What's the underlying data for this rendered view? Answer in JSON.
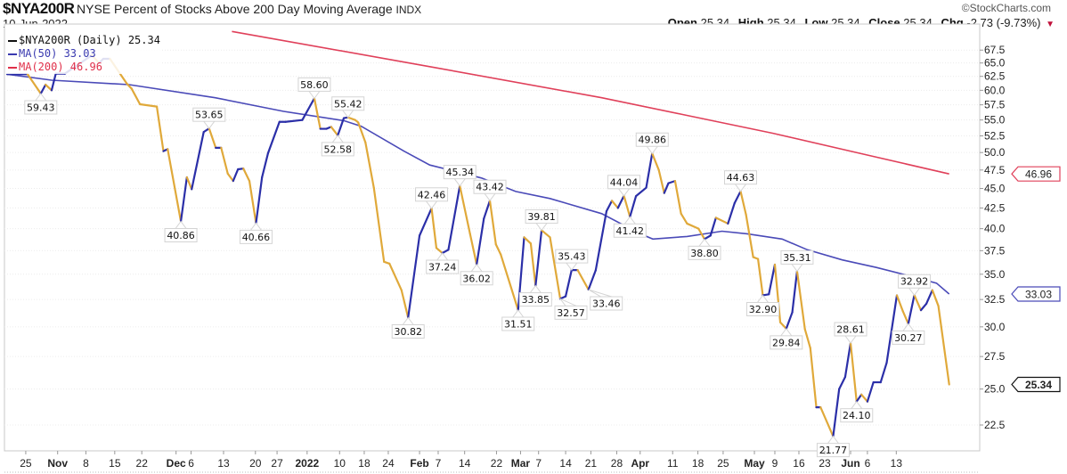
{
  "header": {
    "symbol": "$NYA200R",
    "description": "NYSE Percent of Stocks Above 200 Day Moving Average",
    "exchange": "INDX",
    "date": "10-Jun-2022",
    "copyright": "©StockCharts.com",
    "ohlc": {
      "open_label": "Open",
      "open": "25.34",
      "high_label": "High",
      "high": "25.34",
      "low_label": "Low",
      "low": "25.34",
      "close_label": "Close",
      "close": "25.34",
      "chg_label": "Chg",
      "chg": "-2.73 (-9.73%)"
    }
  },
  "legend": {
    "price": "$NYA200R (Daily) 25.34",
    "ma50": "MA(50) 33.03",
    "ma200": "MA(200) 46.96"
  },
  "colors": {
    "up": "#2b2fa8",
    "down": "#e0a93a",
    "ma50": "#4a4ab8",
    "ma200": "#e0405a",
    "grid": "#cccccc"
  },
  "chart_data": {
    "type": "line",
    "title": "$NYA200R NYSE Percent of Stocks Above 200 Day Moving Average",
    "yscale": "log",
    "ylim": [
      21,
      71
    ],
    "xlim": [
      0,
      161
    ],
    "x_unit": "trading-day index",
    "yticks": [
      "22.5",
      "25.0",
      "27.5",
      "30.0",
      "32.5",
      "35.0",
      "37.5",
      "40.0",
      "42.5",
      "45.0",
      "47.5",
      "50.0",
      "52.5",
      "55.0",
      "57.5",
      "60.0",
      "62.5",
      "65.0",
      "67.5"
    ],
    "xticks": [
      {
        "d": 3.1,
        "label": "25",
        "bold": false
      },
      {
        "d": 8.4,
        "label": "Nov",
        "bold": true
      },
      {
        "d": 13.1,
        "label": "8",
        "bold": false
      },
      {
        "d": 17.9,
        "label": "15",
        "bold": false
      },
      {
        "d": 22.4,
        "label": "22",
        "bold": false
      },
      {
        "d": 28.1,
        "label": "Dec",
        "bold": true
      },
      {
        "d": 30.6,
        "label": "6",
        "bold": false
      },
      {
        "d": 36,
        "label": "13",
        "bold": false
      },
      {
        "d": 41.3,
        "label": "20",
        "bold": false
      },
      {
        "d": 44.9,
        "label": "27",
        "bold": false
      },
      {
        "d": 49.9,
        "label": "2022",
        "bold": true
      },
      {
        "d": 55.3,
        "label": "10",
        "bold": false
      },
      {
        "d": 59.4,
        "label": "18",
        "bold": false
      },
      {
        "d": 63.4,
        "label": "24",
        "bold": false
      },
      {
        "d": 68.6,
        "label": "Feb",
        "bold": true
      },
      {
        "d": 71.7,
        "label": "7",
        "bold": false
      },
      {
        "d": 76.1,
        "label": "14",
        "bold": false
      },
      {
        "d": 81.4,
        "label": "22",
        "bold": false
      },
      {
        "d": 85.4,
        "label": "Mar",
        "bold": true
      },
      {
        "d": 88.4,
        "label": "7",
        "bold": false
      },
      {
        "d": 92.9,
        "label": "14",
        "bold": false
      },
      {
        "d": 97.1,
        "label": "21",
        "bold": false
      },
      {
        "d": 101.4,
        "label": "28",
        "bold": false
      },
      {
        "d": 105.3,
        "label": "Apr",
        "bold": true
      },
      {
        "d": 110.7,
        "label": "11",
        "bold": false
      },
      {
        "d": 114.9,
        "label": "18",
        "bold": false
      },
      {
        "d": 119.1,
        "label": "25",
        "bold": false
      },
      {
        "d": 124.3,
        "label": "May",
        "bold": true
      },
      {
        "d": 127.7,
        "label": "9",
        "bold": false
      },
      {
        "d": 131.7,
        "label": "16",
        "bold": false
      },
      {
        "d": 136,
        "label": "23",
        "bold": false
      },
      {
        "d": 140.3,
        "label": "Jun",
        "bold": true
      },
      {
        "d": 143.1,
        "label": "6",
        "bold": false
      },
      {
        "d": 147.9,
        "label": "13",
        "bold": false
      }
    ],
    "series": [
      {
        "name": "$NYA200R (Daily)",
        "points": [
          [
            0,
            62.9
          ],
          [
            1.3,
            62.9
          ],
          [
            3.4,
            62.9
          ],
          [
            5.6,
            59.43
          ],
          [
            6.4,
            61
          ],
          [
            7.4,
            60
          ],
          [
            8.1,
            63
          ],
          [
            9.6,
            63
          ],
          [
            14.1,
            66.5
          ],
          [
            15.3,
            65
          ],
          [
            16,
            65.8
          ],
          [
            17.1,
            65.8
          ],
          [
            19.9,
            61.2
          ],
          [
            20.7,
            60.3
          ],
          [
            22.1,
            57.6
          ],
          [
            24.9,
            57.2
          ],
          [
            26,
            50.2
          ],
          [
            26.7,
            50.5
          ],
          [
            28.9,
            40.86
          ],
          [
            29.9,
            46.5
          ],
          [
            30.7,
            44.9
          ],
          [
            32.7,
            53.1
          ],
          [
            33.6,
            53.65
          ],
          [
            34.7,
            50.7
          ],
          [
            35.6,
            50.7
          ],
          [
            36.7,
            47
          ],
          [
            37.6,
            46
          ],
          [
            38.4,
            47.6
          ],
          [
            39.3,
            47.7
          ],
          [
            40.3,
            46
          ],
          [
            41.4,
            40.66
          ],
          [
            42.4,
            46.5
          ],
          [
            43.4,
            49.9
          ],
          [
            45.3,
            54.7
          ],
          [
            46.3,
            54.7
          ],
          [
            49.1,
            55
          ],
          [
            51.1,
            58.6
          ],
          [
            52.1,
            53.6
          ],
          [
            53.1,
            53.6
          ],
          [
            53.9,
            53.9
          ],
          [
            55,
            52.58
          ],
          [
            56,
            55.3
          ],
          [
            56.7,
            55.42
          ],
          [
            57.9,
            55
          ],
          [
            58.4,
            54.6
          ],
          [
            59.6,
            51.5
          ],
          [
            61,
            45.1
          ],
          [
            62.7,
            36.3
          ],
          [
            63.6,
            36.1
          ],
          [
            65.6,
            33.4
          ],
          [
            66.7,
            30.82
          ],
          [
            68.6,
            39.2
          ],
          [
            70.6,
            42.46
          ],
          [
            71.4,
            37.8
          ],
          [
            72.4,
            37.24
          ],
          [
            73.4,
            37.6
          ],
          [
            75.3,
            45.34
          ],
          [
            77,
            39.4
          ],
          [
            78.1,
            36.02
          ],
          [
            79.3,
            41.2
          ],
          [
            80.3,
            43.42
          ],
          [
            81.3,
            38.2
          ],
          [
            82.1,
            37.1
          ],
          [
            85,
            31.51
          ],
          [
            86,
            39
          ],
          [
            87.1,
            38.3
          ],
          [
            87.9,
            33.85
          ],
          [
            88.9,
            39.81
          ],
          [
            90.3,
            39
          ],
          [
            92,
            32.57
          ],
          [
            92.9,
            32.8
          ],
          [
            93.9,
            35.43
          ],
          [
            94.9,
            35.43
          ],
          [
            96.7,
            33.46
          ],
          [
            97.9,
            35.4
          ],
          [
            99.7,
            42.1
          ],
          [
            100.6,
            43.4
          ],
          [
            101.6,
            42.5
          ],
          [
            102.6,
            44.04
          ],
          [
            103.6,
            41.42
          ],
          [
            104.6,
            44
          ],
          [
            106.3,
            45.1
          ],
          [
            107.3,
            49.86
          ],
          [
            108.4,
            47.5
          ],
          [
            109.3,
            44.4
          ],
          [
            110,
            45.7
          ],
          [
            111.1,
            46
          ],
          [
            112.1,
            41.8
          ],
          [
            113.1,
            40.6
          ],
          [
            115,
            40
          ],
          [
            116,
            38.8
          ],
          [
            117,
            39.2
          ],
          [
            117.9,
            41.3
          ],
          [
            119.9,
            40.6
          ],
          [
            121,
            43.1
          ],
          [
            122,
            44.63
          ],
          [
            122.9,
            41.7
          ],
          [
            124.1,
            36.8
          ],
          [
            124.9,
            36.6
          ],
          [
            125.7,
            32.9
          ],
          [
            126.7,
            33
          ],
          [
            127.7,
            36
          ],
          [
            128.6,
            30.4
          ],
          [
            129.6,
            29.84
          ],
          [
            130.6,
            31.3
          ],
          [
            131.4,
            35.31
          ],
          [
            132.7,
            29.8
          ],
          [
            133.6,
            28.2
          ],
          [
            134.6,
            23.7
          ],
          [
            135.3,
            23.7
          ],
          [
            137.4,
            21.77
          ],
          [
            138.4,
            25
          ],
          [
            139.4,
            25.9
          ],
          [
            140.3,
            28.61
          ],
          [
            141.3,
            24.1
          ],
          [
            142.1,
            24.6
          ],
          [
            143.1,
            24.1
          ],
          [
            144.1,
            25.5
          ],
          [
            145.3,
            25.5
          ],
          [
            146.3,
            27
          ],
          [
            148,
            32.9
          ],
          [
            149,
            31.4
          ],
          [
            149.9,
            30.27
          ],
          [
            150.9,
            32.92
          ],
          [
            152,
            31.5
          ],
          [
            152.9,
            32.1
          ],
          [
            153.9,
            33.4
          ],
          [
            154.9,
            31.9
          ],
          [
            156.7,
            25.34
          ]
        ]
      },
      {
        "name": "MA(50)",
        "points": [
          [
            0,
            62.9
          ],
          [
            7.4,
            61.8
          ],
          [
            20.3,
            61
          ],
          [
            34.6,
            58.7
          ],
          [
            46,
            56.4
          ],
          [
            56,
            54.9
          ],
          [
            58.9,
            54
          ],
          [
            66,
            50.2
          ],
          [
            70.3,
            48.2
          ],
          [
            78.9,
            46.4
          ],
          [
            84.6,
            44.6
          ],
          [
            90.3,
            43.7
          ],
          [
            98.9,
            41.8
          ],
          [
            105.3,
            39.4
          ],
          [
            107.4,
            38.8
          ],
          [
            113.1,
            39.1
          ],
          [
            118.9,
            39.7
          ],
          [
            123.1,
            39.4
          ],
          [
            128.9,
            38.8
          ],
          [
            133.1,
            37.6
          ],
          [
            138.9,
            36.5
          ],
          [
            144.6,
            35.7
          ],
          [
            150.3,
            34.8
          ],
          [
            154.6,
            34.1
          ],
          [
            156.7,
            33.03
          ]
        ]
      },
      {
        "name": "MA(200)",
        "points": [
          [
            37.4,
            71.3
          ],
          [
            70.3,
            64.3
          ],
          [
            98.9,
            58.7
          ],
          [
            127.4,
            52.9
          ],
          [
            141.7,
            49.9
          ],
          [
            156.7,
            46.96
          ]
        ]
      }
    ],
    "annotations": [
      {
        "d": 5.6,
        "label": "59.43",
        "pos": "below"
      },
      {
        "d": 28.9,
        "label": "40.86",
        "pos": "below"
      },
      {
        "d": 33.6,
        "label": "53.65",
        "pos": "above"
      },
      {
        "d": 41.4,
        "label": "40.66",
        "pos": "below"
      },
      {
        "d": 51.1,
        "label": "58.60",
        "pos": "above"
      },
      {
        "d": 55,
        "label": "52.58",
        "pos": "below"
      },
      {
        "d": 56.7,
        "label": "55.42",
        "pos": "above"
      },
      {
        "d": 66.7,
        "label": "30.82",
        "pos": "below"
      },
      {
        "d": 70.6,
        "label": "42.46",
        "pos": "above"
      },
      {
        "d": 72.4,
        "label": "37.24",
        "pos": "below"
      },
      {
        "d": 75.3,
        "label": "45.34",
        "pos": "above"
      },
      {
        "d": 78.1,
        "label": "36.02",
        "pos": "below"
      },
      {
        "d": 80.3,
        "label": "43.42",
        "pos": "above"
      },
      {
        "d": 85,
        "label": "31.51",
        "pos": "below"
      },
      {
        "d": 87.9,
        "label": "33.85",
        "pos": "below"
      },
      {
        "d": 88.9,
        "label": "39.81",
        "pos": "above"
      },
      {
        "d": 92,
        "label": "32.57",
        "pos": "below"
      },
      {
        "d": 93.9,
        "label": "35.43",
        "pos": "above"
      },
      {
        "d": 96.7,
        "label": "33.46",
        "pos": "below"
      },
      {
        "d": 102.6,
        "label": "44.04",
        "pos": "above"
      },
      {
        "d": 103.6,
        "label": "41.42",
        "pos": "below"
      },
      {
        "d": 107.3,
        "label": "49.86",
        "pos": "above"
      },
      {
        "d": 116,
        "label": "38.80",
        "pos": "below"
      },
      {
        "d": 122,
        "label": "44.63",
        "pos": "above"
      },
      {
        "d": 125.7,
        "label": "32.90",
        "pos": "below"
      },
      {
        "d": 129.6,
        "label": "29.84",
        "pos": "below"
      },
      {
        "d": 131.4,
        "label": "35.31",
        "pos": "above"
      },
      {
        "d": 137.4,
        "label": "21.77",
        "pos": "below"
      },
      {
        "d": 140.3,
        "label": "28.61",
        "pos": "above"
      },
      {
        "d": 141.3,
        "label": "24.10",
        "pos": "below"
      },
      {
        "d": 149.9,
        "label": "30.27",
        "pos": "below"
      },
      {
        "d": 150.9,
        "label": "32.92",
        "pos": "above"
      }
    ],
    "last_value_tags": [
      {
        "series": "MA(200)",
        "label": "46.96",
        "value": 46.96,
        "color": "#e0405a"
      },
      {
        "series": "MA(50)",
        "label": "33.03",
        "value": 33.03,
        "color": "#4a4ab8"
      },
      {
        "series": "$NYA200R",
        "label": "25.34",
        "value": 25.34,
        "color": "#111111"
      }
    ]
  }
}
